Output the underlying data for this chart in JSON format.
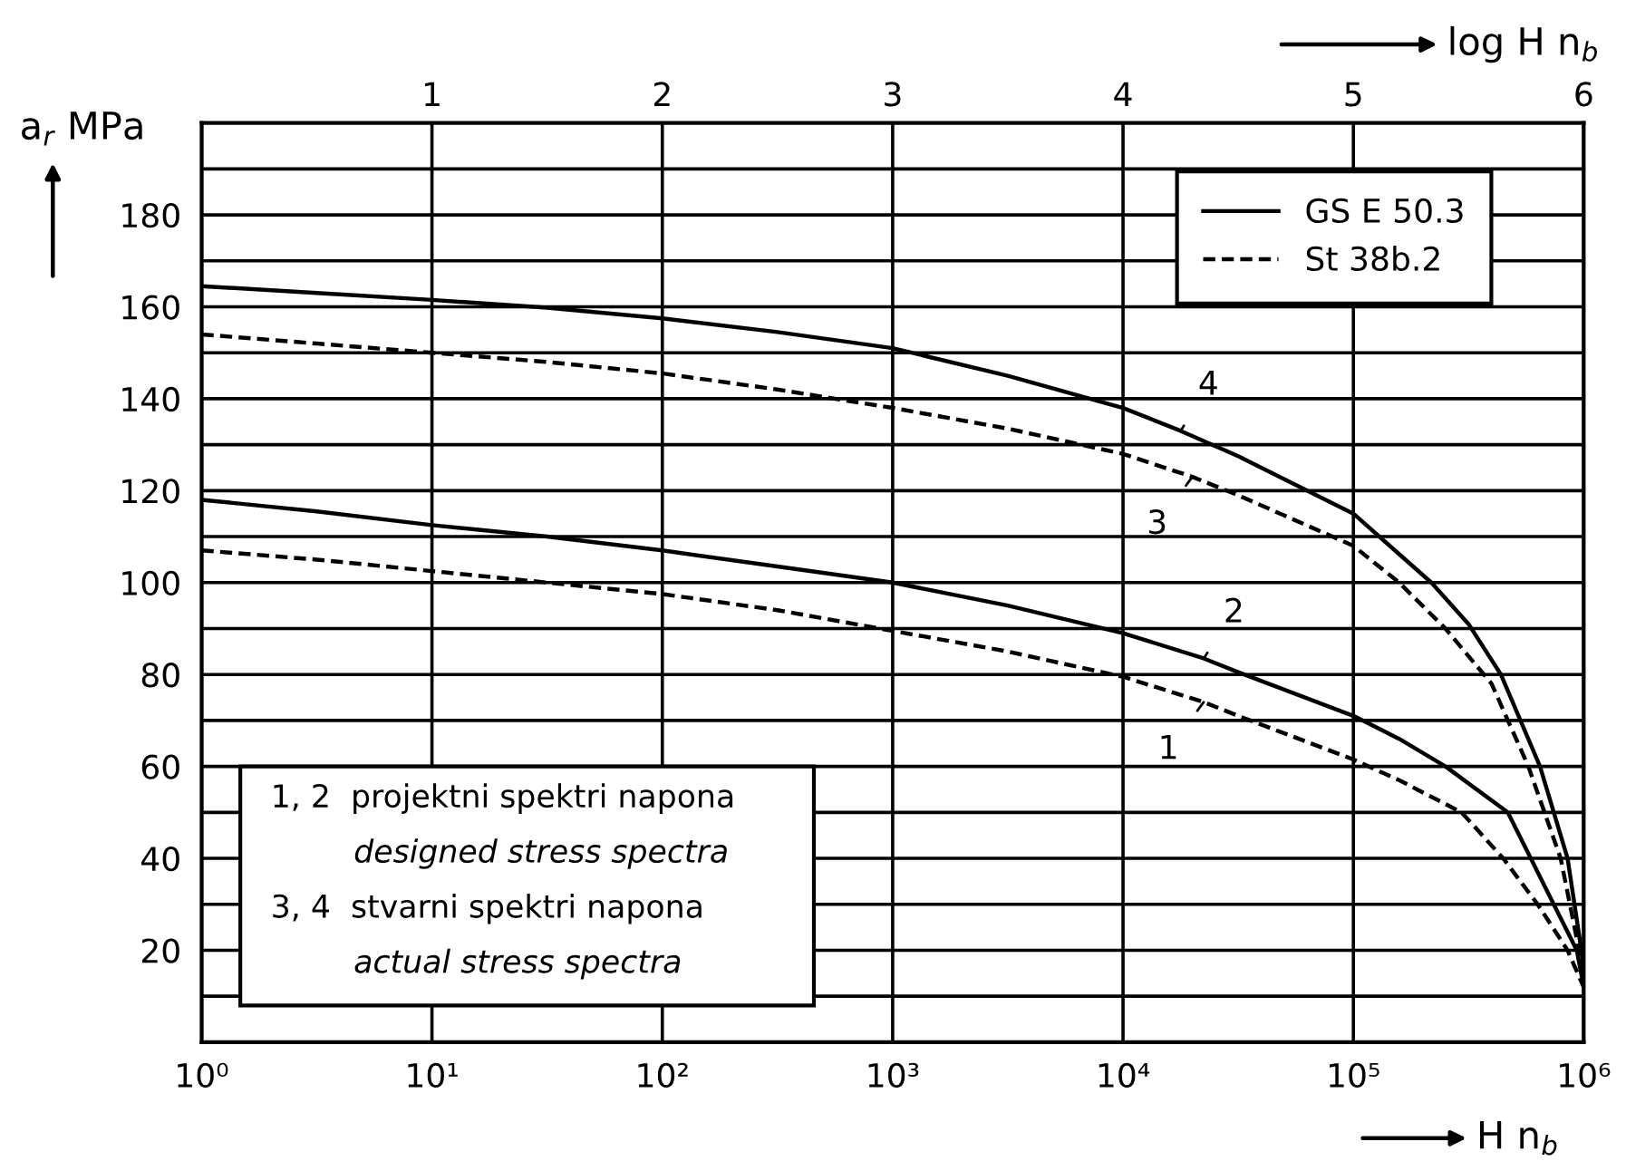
{
  "chart_data": {
    "type": "line",
    "xlabel": "H n$_{b}$",
    "x2label": "log H n$_{b}$",
    "ylabel": "a$_{r}$ MPa",
    "log": "x",
    "xlim": [
      1,
      1000000
    ],
    "ylim": [
      0,
      200
    ],
    "xticks": [
      {
        "value": 1,
        "label": "10⁰"
      },
      {
        "value": 10,
        "label": "10¹"
      },
      {
        "value": 100,
        "label": "10²"
      },
      {
        "value": 1000,
        "label": "10³"
      },
      {
        "value": 10000,
        "label": "10⁴"
      },
      {
        "value": 100000,
        "label": "10⁵"
      },
      {
        "value": 1000000,
        "label": "10⁶"
      }
    ],
    "x2lim": [
      0,
      6
    ],
    "x2ticks": [
      1,
      2,
      3,
      4,
      5,
      6
    ],
    "yticks": [
      {
        "value": 10,
        "label": null
      },
      20,
      {
        "value": 30,
        "label": null
      },
      40,
      {
        "value": 50,
        "label": null
      },
      60,
      {
        "value": 70,
        "label": null
      },
      80,
      {
        "value": 90,
        "label": null
      },
      100,
      {
        "value": 110,
        "label": null
      },
      120,
      {
        "value": 130,
        "label": null
      },
      140,
      {
        "value": 150,
        "label": null
      },
      160,
      {
        "value": 170,
        "label": null
      },
      180,
      {
        "value": 190,
        "label": null
      }
    ],
    "grid": true,
    "legend": "top right",
    "marker": "none",
    "series": [
      {
        "name": "GS E 50.3",
        "color": "#000000",
        "line_style": "solid",
        "x": [
          1,
          3.16,
          10,
          31.6,
          100,
          316,
          1000,
          3160,
          10000,
          17800,
          31600,
          100000,
          218000,
          316000,
          437000,
          646000,
          851000,
          977000,
          1000000
        ],
        "values": [
          164.5,
          163,
          161.5,
          159.8,
          157.5,
          154.5,
          151,
          145,
          138,
          133,
          127.5,
          115,
          100,
          91,
          80,
          60,
          40,
          20,
          15
        ]
      },
      {
        "name": "St 38b.2",
        "color": "#000000",
        "line_style": "dashed",
        "x": [
          1,
          3.16,
          10,
          31.6,
          100,
          316,
          1000,
          3160,
          10000,
          20000,
          31600,
          100000,
          158000,
          251000,
          398000,
          575000,
          794000,
          955000,
          1000000
        ],
        "values": [
          154,
          152,
          150,
          148,
          145.5,
          142,
          138,
          133.5,
          128,
          123,
          119,
          108,
          100,
          90,
          78,
          60,
          40,
          20,
          15
        ]
      },
      {
        "color": "#000000",
        "line_style": "solid",
        "x": [
          1,
          3.16,
          10,
          31.6,
          100,
          316,
          1000,
          3160,
          10000,
          22400,
          31600,
          100000,
          158000,
          251000,
          468000,
          589000,
          741000,
          933000,
          1000000
        ],
        "values": [
          118,
          115.5,
          112.5,
          110,
          107,
          103.5,
          100,
          95,
          89,
          83.5,
          80.5,
          71,
          66,
          60,
          50,
          40,
          30,
          20,
          12
        ]
      },
      {
        "color": "#000000",
        "line_style": "dashed",
        "x": [
          1,
          3.16,
          10,
          31.6,
          100,
          316,
          1000,
          3160,
          10000,
          22400,
          31600,
          100000,
          158000,
          295000,
          447000,
          631000,
          851000,
          1000000
        ],
        "values": [
          107,
          105,
          102.5,
          100,
          97.5,
          94,
          89.5,
          85,
          79.5,
          74,
          71,
          61.5,
          57,
          50,
          40,
          30,
          20,
          12
        ]
      }
    ],
    "annotations": [
      {
        "text": "4",
        "x": 17800,
        "y": 133
      },
      {
        "text": "3",
        "x": 20000,
        "y": 123
      },
      {
        "text": "2",
        "x": 22400,
        "y": 83.5
      },
      {
        "text": "1",
        "x": 22400,
        "y": 74
      },
      "1, 2  projektni spektri napona",
      "designed stress spectra",
      "3, 4  stvarni spektri napona",
      "actual stress spectra"
    ]
  }
}
